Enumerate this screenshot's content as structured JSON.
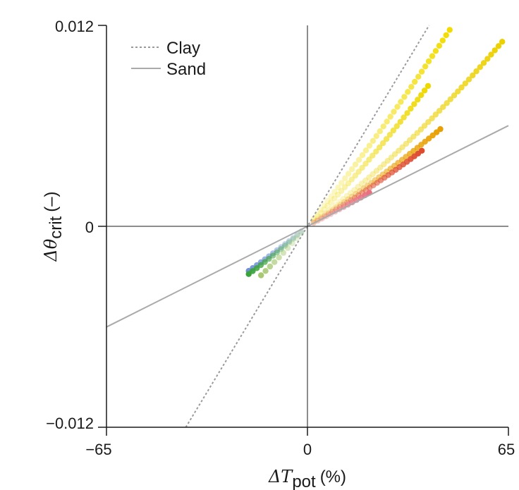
{
  "chart_data": {
    "type": "scatter",
    "title": "",
    "xlabel": {
      "symbol": "ΔT",
      "subscript": "pot",
      "unit": "(%)"
    },
    "ylabel": {
      "symbol": "Δθ",
      "subscript": "crit",
      "unit": "(–)"
    },
    "xlim": [
      -65,
      65
    ],
    "ylim": [
      -0.012,
      0.012
    ],
    "x_ticks": [
      -65,
      0,
      65
    ],
    "x_tick_labels": [
      "−65",
      "0",
      "65"
    ],
    "y_ticks": [
      -0.012,
      0,
      0.012
    ],
    "y_tick_labels": [
      "−0.012",
      "0",
      "0.012"
    ],
    "grid": false,
    "legend_position": "top-left",
    "lines": [
      {
        "name": "Clay",
        "style": "dotted",
        "color": "#9a9a9a",
        "slope": 0.000305
      },
      {
        "name": "Sand",
        "style": "solid",
        "color": "#aaaaaa",
        "slope": 9.25e-05
      }
    ],
    "series": [
      {
        "name": "yellow-upper",
        "color": "#f2dc00",
        "slope_start": 0.00023,
        "slope_end": 0.000255,
        "x_min": 2,
        "x_max": 46,
        "n": 40,
        "alpha_min": 0.15
      },
      {
        "name": "yellow-mid",
        "color": "#eed800",
        "slope_start": 0.000185,
        "slope_end": 0.000215,
        "x_min": 2,
        "x_max": 39,
        "n": 34,
        "alpha_min": 0.15
      },
      {
        "name": "yellow-lower",
        "color": "#ecd000",
        "slope_start": 0.000135,
        "slope_end": 0.000175,
        "x_min": 2,
        "x_max": 63,
        "n": 52,
        "alpha_min": 0.12
      },
      {
        "name": "orange",
        "color": "#e8a000",
        "slope_start": 0.000118,
        "slope_end": 0.000135,
        "x_min": 2,
        "x_max": 43,
        "n": 34,
        "alpha_min": 0.12
      },
      {
        "name": "red",
        "color": "#dd4a2e",
        "slope_start": 0.000106,
        "slope_end": 0.000122,
        "x_min": 2,
        "x_max": 37,
        "n": 30,
        "alpha_min": 0.12
      },
      {
        "name": "pink",
        "color": "#e87080",
        "slope_start": 9.7e-05,
        "slope_end": 0.0001,
        "x_min": 2,
        "x_max": 20,
        "n": 14,
        "alpha_min": 0.12
      },
      {
        "name": "blue",
        "color": "#6f8fd6",
        "slope_start": 0.00014,
        "slope_end": 0.00015,
        "x_min": -19,
        "x_max": -2,
        "n": 14,
        "alpha_min": 0.15
      },
      {
        "name": "green",
        "color": "#3aa33a",
        "slope_start": 0.00015,
        "slope_end": 0.000165,
        "x_min": -19,
        "x_max": -2,
        "n": 14,
        "alpha_min": 0.12
      },
      {
        "name": "light-green",
        "color": "#a8c873",
        "slope_start": 0.000195,
        "slope_end": 0.00021,
        "x_min": -15,
        "x_max": -2,
        "n": 10,
        "alpha_min": 0.12
      }
    ]
  }
}
